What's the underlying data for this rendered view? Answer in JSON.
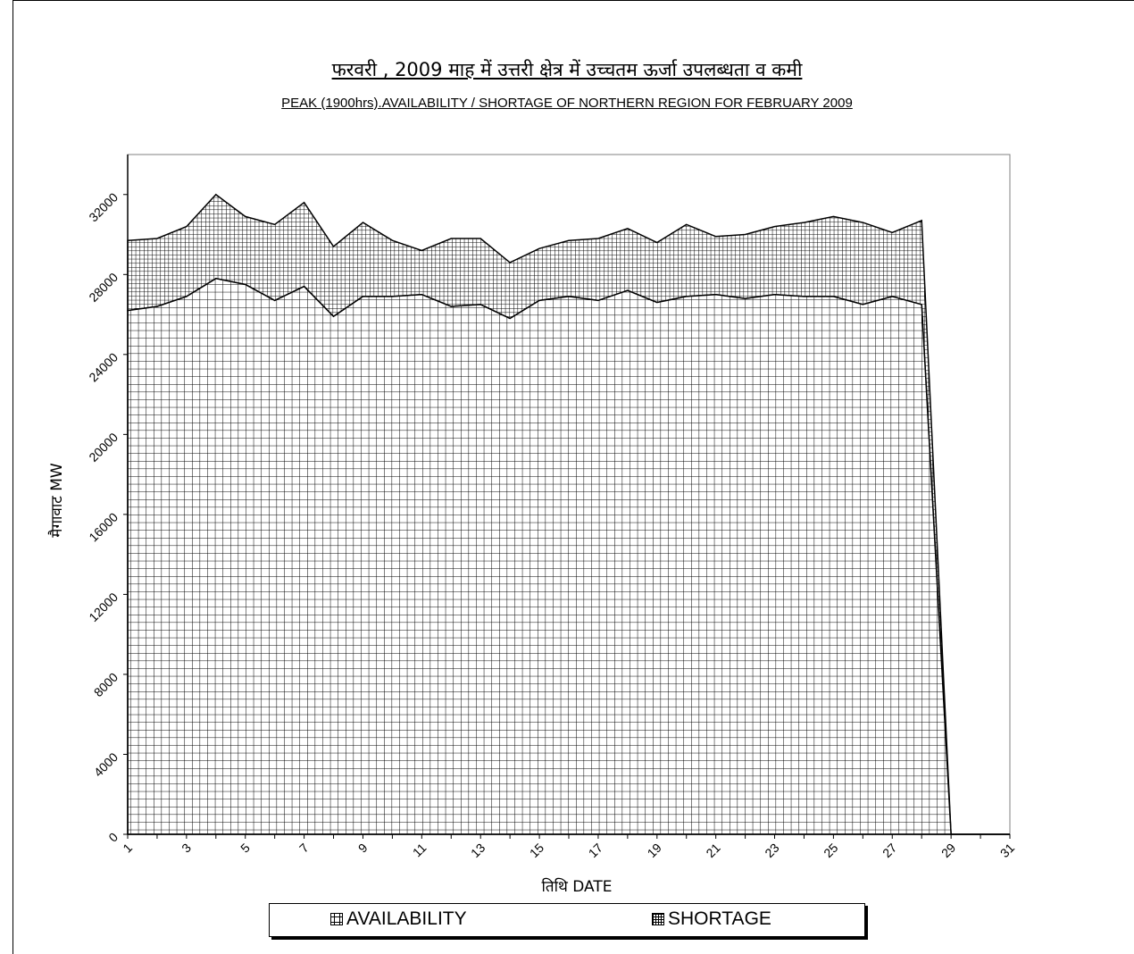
{
  "titles": {
    "hindi": "फरवरी , 2009 माह में उत्तरी क्षेत्र में उच्चतम ऊर्जा उपलब्धता व कमी",
    "english": "PEAK (1900hrs).AVAILABILITY / SHORTAGE  OF NORTHERN REGION FOR FEBRUARY 2009"
  },
  "legend": {
    "availability": "AVAILABILITY",
    "shortage": "SHORTAGE"
  },
  "chart_data": {
    "type": "area",
    "stacked": true,
    "title": "PEAK (1900hrs).AVAILABILITY / SHORTAGE  OF NORTHERN REGION FOR FEBRUARY 2009",
    "xlabel": "तिथि DATE",
    "ylabel": "मैगावाट MW",
    "x": [
      1,
      2,
      3,
      4,
      5,
      6,
      7,
      8,
      9,
      10,
      11,
      12,
      13,
      14,
      15,
      16,
      17,
      18,
      19,
      20,
      21,
      22,
      23,
      24,
      25,
      26,
      27,
      28,
      29,
      30,
      31
    ],
    "xticks": [
      1,
      3,
      5,
      7,
      9,
      11,
      13,
      15,
      17,
      19,
      21,
      23,
      25,
      27,
      29,
      31
    ],
    "yticks": [
      0,
      4000,
      8000,
      12000,
      16000,
      20000,
      24000,
      28000,
      32000
    ],
    "ylim": [
      0,
      34000
    ],
    "xlim": [
      1,
      31
    ],
    "grid": false,
    "legend_position": "bottom",
    "series": [
      {
        "name": "AVAILABILITY",
        "values": [
          26200,
          26400,
          26900,
          27800,
          27500,
          26700,
          27400,
          25900,
          26900,
          26900,
          27000,
          26400,
          26500,
          25800,
          26700,
          26900,
          26700,
          27200,
          26600,
          26900,
          27000,
          26800,
          27000,
          26900,
          26900,
          26500,
          26900,
          26500,
          0,
          0,
          0
        ]
      },
      {
        "name": "SHORTAGE",
        "values": [
          3500,
          3400,
          3500,
          4200,
          3400,
          3800,
          4200,
          3500,
          3700,
          2800,
          2200,
          3400,
          3300,
          2800,
          2600,
          2800,
          3100,
          3100,
          3000,
          3600,
          2900,
          3200,
          3400,
          3700,
          4000,
          4100,
          3200,
          4200,
          0,
          0,
          0
        ]
      }
    ]
  }
}
